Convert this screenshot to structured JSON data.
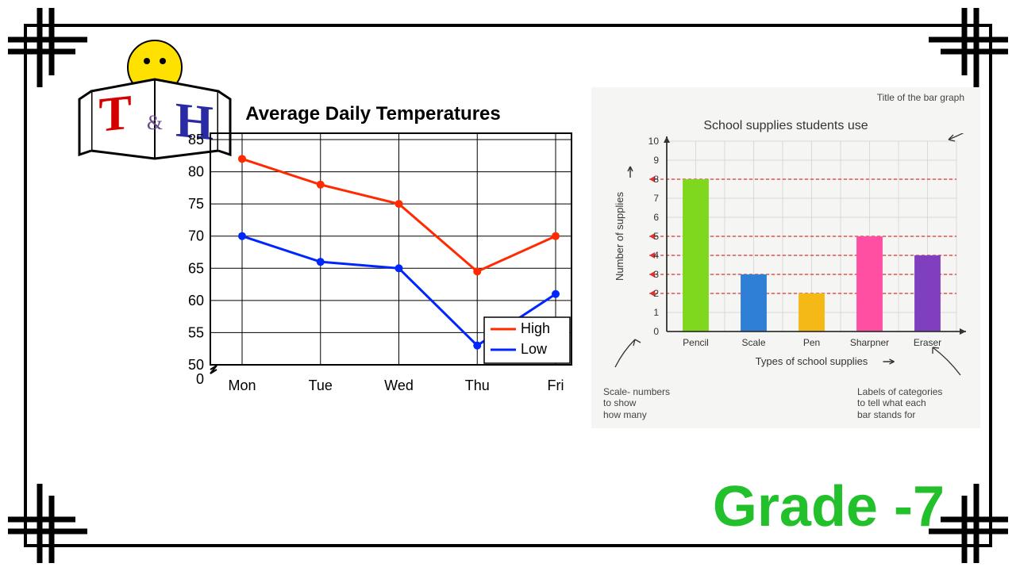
{
  "grade_label": "Grade -7",
  "logo": {
    "letter_t": "T",
    "amp": "&",
    "letter_h": "H",
    "t_color": "#d40000",
    "h_color": "#2a2aa5",
    "amp_color": "#6b4a8a",
    "face_color": "#ffe100",
    "book_fill": "#ffffff",
    "book_stroke": "#000000"
  },
  "line_chart": {
    "title": "Average Daily Temperatures",
    "categories": [
      "Mon",
      "Tue",
      "Wed",
      "Thu",
      "Fri"
    ],
    "y_ticks": [
      0,
      50,
      55,
      60,
      65,
      70,
      75,
      80,
      85
    ],
    "series": [
      {
        "name": "High",
        "color": "#ff2a00",
        "values": [
          82,
          78,
          75,
          64.5,
          70
        ]
      },
      {
        "name": "Low",
        "color": "#0026ff",
        "values": [
          70,
          66,
          65,
          53,
          61
        ]
      }
    ],
    "axis_color": "#000000",
    "grid_color": "#000000",
    "line_width": 3,
    "marker_radius": 5,
    "label_fontsize": 18,
    "tick_fontsize": 18,
    "title_fontsize": 24
  },
  "bar_chart": {
    "title": "School supplies students use",
    "xlabel": "Types of school supplies",
    "ylabel": "Number of supplies",
    "categories": [
      "Pencil",
      "Scale",
      "Pen",
      "Sharpner",
      "Eraser"
    ],
    "values": [
      8,
      3,
      2,
      5,
      4
    ],
    "bar_colors": [
      "#7fd81e",
      "#2f7fd6",
      "#f5b917",
      "#ff4fa3",
      "#7f3fbf"
    ],
    "y_ticks": [
      0,
      1,
      2,
      3,
      4,
      5,
      6,
      7,
      8,
      9,
      10
    ],
    "dash_lines": [
      2,
      3,
      4,
      5,
      8
    ],
    "grid_color": "#d9d9d7",
    "axis_color": "#333333",
    "dash_color": "#e03030",
    "background_color": "#f5f5f3",
    "bar_width": 0.45,
    "label_fontsize": 13,
    "tick_fontsize": 12,
    "title_fontsize": 16,
    "annotations": {
      "title_note": "Title of the bar graph",
      "scale_note": "Scale- numbers\nto show\nhow many",
      "labels_note": "Labels of categories\nto tell what each\nbar stands for"
    }
  }
}
